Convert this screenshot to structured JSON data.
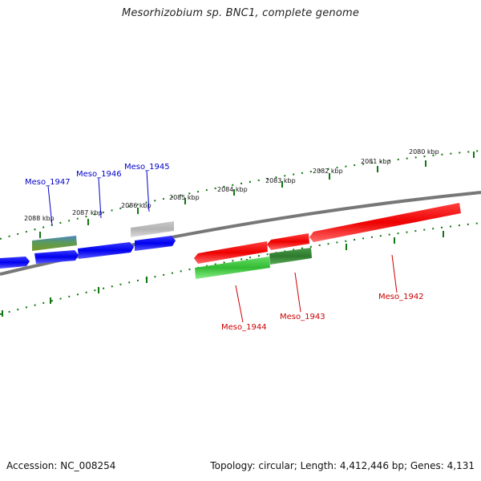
{
  "title": "Mesorhizobium sp. BNC1, complete genome",
  "footer": {
    "accession": "Accession: NC_008254",
    "summary": "Topology: circular; Length: 4,412,446 bp; Genes: 4,131"
  },
  "colors": {
    "forward_strand": "#0000ee",
    "reverse_strand": "#ee0000",
    "rna_gene": "#33cc33",
    "pseudo_gene": "#aaaaaa",
    "backbone": "#777777",
    "tick": "#117711",
    "forward_label": "#0000cc",
    "reverse_label": "#cc0000"
  },
  "scale": {
    "unit": "kbp",
    "ticks": [
      {
        "label": "2080 kbp"
      },
      {
        "label": "2081 kbp"
      },
      {
        "label": "2082 kbp"
      },
      {
        "label": "2083 kbp"
      },
      {
        "label": "2084 kbp"
      },
      {
        "label": "2085 kbp"
      },
      {
        "label": "2086 kbp"
      },
      {
        "label": "2087 kbp"
      },
      {
        "label": "2088 kbp"
      }
    ]
  },
  "genes": [
    {
      "name": "Meso_1947",
      "strand": "forward"
    },
    {
      "name": "Meso_1946",
      "strand": "forward"
    },
    {
      "name": "Meso_1945",
      "strand": "forward"
    },
    {
      "name": "Meso_1944",
      "strand": "reverse"
    },
    {
      "name": "Meso_1943",
      "strand": "reverse"
    },
    {
      "name": "Meso_1942",
      "strand": "reverse"
    }
  ]
}
